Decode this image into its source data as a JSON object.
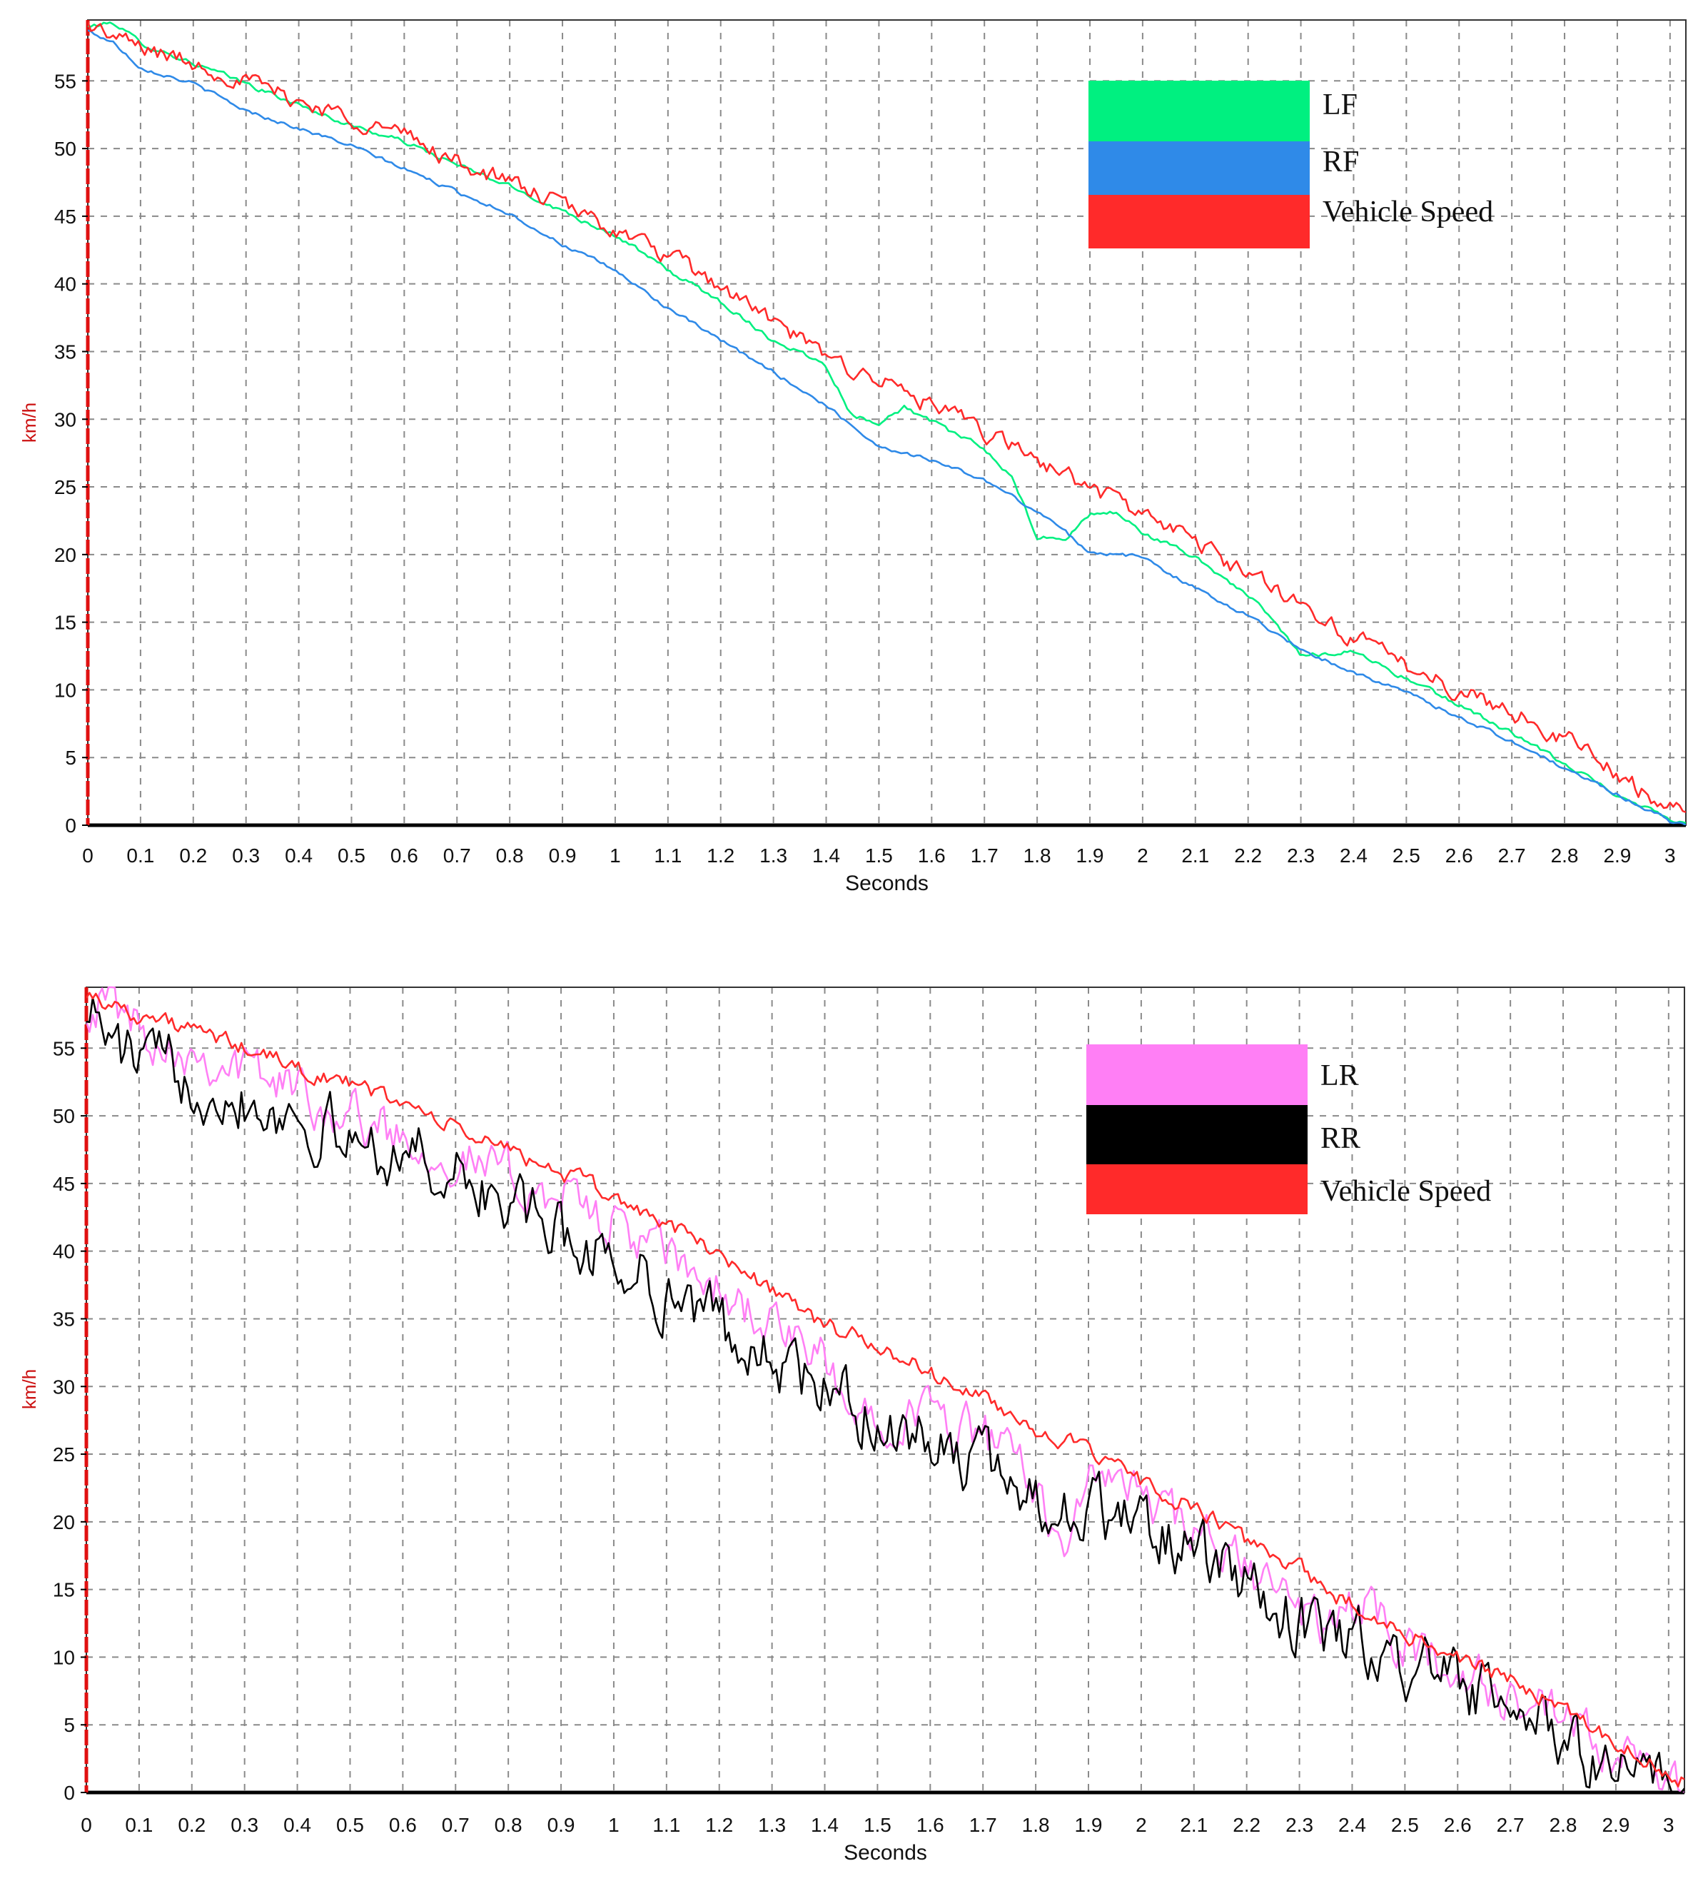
{
  "colors": {
    "lf": "#00f080",
    "rf": "#2f8ae8",
    "vehicle": "#ff2a2a",
    "lr": "#ff7ff5",
    "rr": "#000000",
    "grid": "#8a8a8a",
    "axis_left": "#e01010"
  },
  "chart_data": [
    {
      "type": "line",
      "title": "",
      "xlabel": "Seconds",
      "ylabel": "km/h",
      "xlim": [
        0,
        3.03
      ],
      "ylim": [
        0,
        59.5
      ],
      "x_ticks": [
        0,
        0.1,
        0.2,
        0.3,
        0.4,
        0.5,
        0.6,
        0.7,
        0.8,
        0.9,
        1,
        1.1,
        1.2,
        1.3,
        1.4,
        1.5,
        1.6,
        1.7,
        1.8,
        1.9,
        2,
        2.1,
        2.2,
        2.3,
        2.4,
        2.5,
        2.6,
        2.7,
        2.8,
        2.9,
        3
      ],
      "x_tick_labels": [
        "0",
        "0.1",
        "0.2",
        "0.3",
        "0.4",
        "0.5",
        "0.6",
        "0.7",
        "0.8",
        "0.9",
        "1",
        "1.1",
        "1.2",
        "1.3",
        "1.4",
        "1.5",
        "1.6",
        "1.7",
        "1.8",
        "1.9",
        "2",
        "2.1",
        "2.2",
        "2.3",
        "2.4",
        "2.5",
        "2.6",
        "2.7",
        "2.8",
        "2.9",
        "3"
      ],
      "y_ticks": [
        0,
        5,
        10,
        15,
        20,
        25,
        30,
        35,
        40,
        45,
        50,
        55
      ],
      "y_tick_labels": [
        "0",
        "5",
        "10",
        "15",
        "20",
        "25",
        "30",
        "35",
        "40",
        "45",
        "50",
        "55"
      ],
      "grid": true,
      "legend_position": "top-right",
      "series": [
        {
          "name": "LF",
          "color_key": "lf",
          "jitter": 0.15,
          "points": [
            [
              0,
              59
            ],
            [
              0.05,
              59.3
            ],
            [
              0.1,
              57.8
            ],
            [
              0.2,
              56.3
            ],
            [
              0.3,
              54.8
            ],
            [
              0.4,
              53.2
            ],
            [
              0.5,
              51.7
            ],
            [
              0.6,
              50.5
            ],
            [
              0.7,
              48.8
            ],
            [
              0.8,
              47.2
            ],
            [
              0.9,
              45.4
            ],
            [
              1.0,
              43.6
            ],
            [
              1.1,
              41.0
            ],
            [
              1.2,
              38.7
            ],
            [
              1.3,
              35.8
            ],
            [
              1.35,
              35.0
            ],
            [
              1.4,
              34.0
            ],
            [
              1.45,
              30.2
            ],
            [
              1.5,
              29.8
            ],
            [
              1.55,
              30.9
            ],
            [
              1.6,
              29.8
            ],
            [
              1.7,
              27.8
            ],
            [
              1.75,
              25.8
            ],
            [
              1.8,
              21.3
            ],
            [
              1.85,
              21.0
            ],
            [
              1.9,
              23.0
            ],
            [
              1.95,
              23.1
            ],
            [
              2.0,
              21.6
            ],
            [
              2.1,
              19.8
            ],
            [
              2.2,
              17.0
            ],
            [
              2.25,
              15.0
            ],
            [
              2.3,
              12.5
            ],
            [
              2.35,
              12.7
            ],
            [
              2.4,
              12.9
            ],
            [
              2.5,
              10.8
            ],
            [
              2.6,
              8.9
            ],
            [
              2.7,
              6.8
            ],
            [
              2.8,
              4.5
            ],
            [
              2.9,
              2.3
            ],
            [
              3.0,
              0.5
            ],
            [
              3.03,
              0.2
            ]
          ]
        },
        {
          "name": "RF",
          "color_key": "rf",
          "jitter": 0.12,
          "points": [
            [
              0,
              58.7
            ],
            [
              0.05,
              57.8
            ],
            [
              0.1,
              56.0
            ],
            [
              0.2,
              54.8
            ],
            [
              0.3,
              52.8
            ],
            [
              0.4,
              51.5
            ],
            [
              0.5,
              50.2
            ],
            [
              0.6,
              48.5
            ],
            [
              0.7,
              46.8
            ],
            [
              0.8,
              45.2
            ],
            [
              0.9,
              42.9
            ],
            [
              1.0,
              41.0
            ],
            [
              1.1,
              38.2
            ],
            [
              1.2,
              35.8
            ],
            [
              1.3,
              33.5
            ],
            [
              1.4,
              31.0
            ],
            [
              1.5,
              28.0
            ],
            [
              1.6,
              27.0
            ],
            [
              1.7,
              25.5
            ],
            [
              1.8,
              23.2
            ],
            [
              1.85,
              21.8
            ],
            [
              1.9,
              20.2
            ],
            [
              2.0,
              19.8
            ],
            [
              2.1,
              17.5
            ],
            [
              2.2,
              15.5
            ],
            [
              2.3,
              13.0
            ],
            [
              2.4,
              11.3
            ],
            [
              2.5,
              9.8
            ],
            [
              2.6,
              8.0
            ],
            [
              2.7,
              6.2
            ],
            [
              2.8,
              4.2
            ],
            [
              2.9,
              2.3
            ],
            [
              3.0,
              0.3
            ],
            [
              3.03,
              0.1
            ]
          ]
        },
        {
          "name": "Vehicle Speed",
          "color_key": "vehicle",
          "jitter": 0.55,
          "points": [
            [
              0,
              59.2
            ],
            [
              0.05,
              58.2
            ],
            [
              0.1,
              57.5
            ],
            [
              0.2,
              56.3
            ],
            [
              0.3,
              55.0
            ],
            [
              0.4,
              53.5
            ],
            [
              0.5,
              52.3
            ],
            [
              0.6,
              51.0
            ],
            [
              0.7,
              49.0
            ],
            [
              0.8,
              47.5
            ],
            [
              0.9,
              45.8
            ],
            [
              1.0,
              44.0
            ],
            [
              1.1,
              42.0
            ],
            [
              1.2,
              39.8
            ],
            [
              1.3,
              37.2
            ],
            [
              1.4,
              34.5
            ],
            [
              1.5,
              33.0
            ],
            [
              1.6,
              31.0
            ],
            [
              1.7,
              29.0
            ],
            [
              1.8,
              27.0
            ],
            [
              1.9,
              25.0
            ],
            [
              2.0,
              23.0
            ],
            [
              2.1,
              21.0
            ],
            [
              2.2,
              18.5
            ],
            [
              2.3,
              16.5
            ],
            [
              2.4,
              13.8
            ],
            [
              2.5,
              11.8
            ],
            [
              2.6,
              10.0
            ],
            [
              2.7,
              8.3
            ],
            [
              2.8,
              6.5
            ],
            [
              2.9,
              3.8
            ],
            [
              3.0,
              1.2
            ],
            [
              3.03,
              0.8
            ]
          ]
        }
      ]
    },
    {
      "type": "line",
      "title": "",
      "xlabel": "Seconds",
      "ylabel": "km/h",
      "xlim": [
        0,
        3.03
      ],
      "ylim": [
        0,
        59.5
      ],
      "x_ticks": [
        0,
        0.1,
        0.2,
        0.3,
        0.4,
        0.5,
        0.6,
        0.7,
        0.8,
        0.9,
        1,
        1.1,
        1.2,
        1.3,
        1.4,
        1.5,
        1.6,
        1.7,
        1.8,
        1.9,
        2,
        2.1,
        2.2,
        2.3,
        2.4,
        2.5,
        2.6,
        2.7,
        2.8,
        2.9,
        3
      ],
      "x_tick_labels": [
        "0",
        "0.1",
        "0.2",
        "0.3",
        "0.4",
        "0.5",
        "0.6",
        "0.7",
        "0.8",
        "0.9",
        "1",
        "1.1",
        "1.2",
        "1.3",
        "1.4",
        "1.5",
        "1.6",
        "1.7",
        "1.8",
        "1.9",
        "2",
        "2.1",
        "2.2",
        "2.3",
        "2.4",
        "2.5",
        "2.6",
        "2.7",
        "2.8",
        "2.9",
        "3"
      ],
      "y_ticks": [
        0,
        5,
        10,
        15,
        20,
        25,
        30,
        35,
        40,
        45,
        50,
        55
      ],
      "y_tick_labels": [
        "0",
        "5",
        "10",
        "15",
        "20",
        "25",
        "30",
        "35",
        "40",
        "45",
        "50",
        "55"
      ],
      "grid": true,
      "legend_position": "top-right",
      "series": [
        {
          "name": "LR",
          "color_key": "lr",
          "jitter": 1.6,
          "points": [
            [
              0,
              58.5
            ],
            [
              0.05,
              58.5
            ],
            [
              0.1,
              56.5
            ],
            [
              0.2,
              55.0
            ],
            [
              0.3,
              53.5
            ],
            [
              0.4,
              52.0
            ],
            [
              0.5,
              50.0
            ],
            [
              0.6,
              48.5
            ],
            [
              0.7,
              47.0
            ],
            [
              0.8,
              45.5
            ],
            [
              0.9,
              44.0
            ],
            [
              1.0,
              42.0
            ],
            [
              1.1,
              39.5
            ],
            [
              1.2,
              37.0
            ],
            [
              1.3,
              34.5
            ],
            [
              1.4,
              31.5
            ],
            [
              1.45,
              27.5
            ],
            [
              1.5,
              28.5
            ],
            [
              1.6,
              28.0
            ],
            [
              1.7,
              26.5
            ],
            [
              1.8,
              22.5
            ],
            [
              1.85,
              19.0
            ],
            [
              1.9,
              22.0
            ],
            [
              1.95,
              24.0
            ],
            [
              2.0,
              21.5
            ],
            [
              2.1,
              19.0
            ],
            [
              2.2,
              16.5
            ],
            [
              2.3,
              13.5
            ],
            [
              2.35,
              12.0
            ],
            [
              2.4,
              14.0
            ],
            [
              2.5,
              11.0
            ],
            [
              2.6,
              9.0
            ],
            [
              2.7,
              6.8
            ],
            [
              2.8,
              4.8
            ],
            [
              2.9,
              2.5
            ],
            [
              3.0,
              0.8
            ],
            [
              3.03,
              0.5
            ]
          ]
        },
        {
          "name": "RR",
          "color_key": "rr",
          "jitter": 2.0,
          "points": [
            [
              0,
              58.8
            ],
            [
              0.05,
              55.0
            ],
            [
              0.1,
              54.0
            ],
            [
              0.2,
              53.0
            ],
            [
              0.3,
              51.5
            ],
            [
              0.4,
              50.0
            ],
            [
              0.5,
              48.0
            ],
            [
              0.6,
              47.5
            ],
            [
              0.7,
              45.5
            ],
            [
              0.8,
              43.5
            ],
            [
              0.9,
              41.0
            ],
            [
              1.0,
              39.5
            ],
            [
              1.1,
              37.0
            ],
            [
              1.2,
              34.5
            ],
            [
              1.3,
              32.0
            ],
            [
              1.4,
              29.5
            ],
            [
              1.5,
              27.5
            ],
            [
              1.6,
              25.5
            ],
            [
              1.7,
              24.0
            ],
            [
              1.8,
              22.0
            ],
            [
              1.9,
              20.5
            ],
            [
              2.0,
              20.0
            ],
            [
              2.1,
              17.5
            ],
            [
              2.2,
              15.0
            ],
            [
              2.3,
              12.5
            ],
            [
              2.4,
              11.0
            ],
            [
              2.5,
              9.5
            ],
            [
              2.6,
              7.8
            ],
            [
              2.7,
              5.8
            ],
            [
              2.8,
              4.0
            ],
            [
              2.9,
              2.0
            ],
            [
              2.98,
              0.2
            ],
            [
              3.03,
              0.3
            ]
          ]
        },
        {
          "name": "Vehicle Speed",
          "color_key": "vehicle",
          "jitter": 0.55,
          "points": [
            [
              0,
              59.2
            ],
            [
              0.05,
              58.2
            ],
            [
              0.1,
              57.5
            ],
            [
              0.2,
              56.3
            ],
            [
              0.3,
              55.0
            ],
            [
              0.4,
              53.5
            ],
            [
              0.5,
              52.3
            ],
            [
              0.6,
              51.0
            ],
            [
              0.7,
              49.0
            ],
            [
              0.8,
              47.5
            ],
            [
              0.9,
              45.8
            ],
            [
              1.0,
              44.0
            ],
            [
              1.1,
              42.0
            ],
            [
              1.2,
              39.8
            ],
            [
              1.3,
              37.2
            ],
            [
              1.4,
              34.5
            ],
            [
              1.5,
              33.0
            ],
            [
              1.6,
              31.0
            ],
            [
              1.7,
              29.0
            ],
            [
              1.8,
              27.0
            ],
            [
              1.9,
              25.0
            ],
            [
              2.0,
              23.0
            ],
            [
              2.1,
              21.0
            ],
            [
              2.2,
              18.5
            ],
            [
              2.3,
              16.5
            ],
            [
              2.4,
              13.8
            ],
            [
              2.5,
              11.8
            ],
            [
              2.6,
              10.0
            ],
            [
              2.7,
              8.3
            ],
            [
              2.8,
              6.5
            ],
            [
              2.9,
              3.8
            ],
            [
              3.0,
              1.2
            ],
            [
              3.03,
              0.8
            ]
          ]
        }
      ]
    }
  ]
}
